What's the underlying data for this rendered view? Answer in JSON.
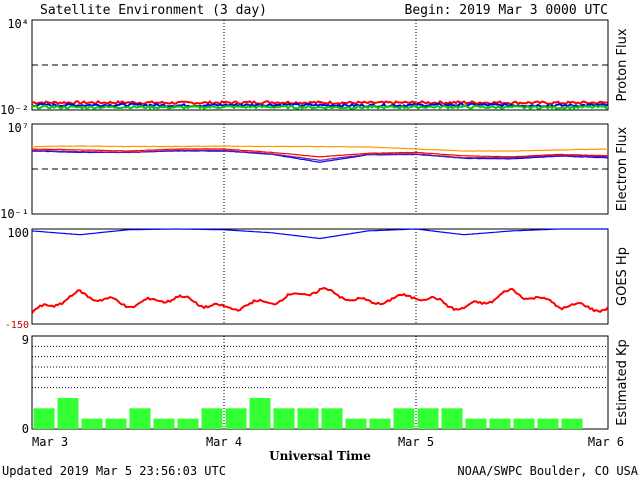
{
  "header": {
    "title": "Satellite Environment (3 day)",
    "begin": "Begin:  2019 Mar 3 0000 UTC"
  },
  "footer": {
    "updated": "Updated 2019 Mar  5 23:56:03 UTC",
    "credit": "NOAA/SWPC Boulder, CO USA",
    "xlabel": "Universal Time"
  },
  "chart_data": [
    {
      "type": "line",
      "panel": "proton",
      "ylabel": "Proton Flux",
      "yscale": "log",
      "y_tick_labels": [
        "10⁴",
        "10⁻²"
      ],
      "ylim": [
        0.01,
        10000
      ],
      "threshold": 10,
      "series": [
        {
          "color": "#ff0000",
          "values": [
            0.032,
            0.031,
            0.032,
            0.03,
            0.031,
            0.033,
            0.031,
            0.03,
            0.031,
            0.032,
            0.031,
            0.03,
            0.031
          ]
        },
        {
          "color": "#0000ff",
          "values": [
            0.022,
            0.021,
            0.022,
            0.02,
            0.021,
            0.022,
            0.021,
            0.02,
            0.021,
            0.022,
            0.021,
            0.02,
            0.021
          ]
        },
        {
          "color": "#00cc00",
          "values": [
            0.016,
            0.015,
            0.016,
            0.015,
            0.016,
            0.016,
            0.015,
            0.015,
            0.016,
            0.016,
            0.015,
            0.015,
            0.016
          ]
        }
      ]
    },
    {
      "type": "line",
      "panel": "electron",
      "ylabel": "Electron Flux",
      "yscale": "log",
      "y_tick_labels": [
        "10⁷",
        "10⁻¹"
      ],
      "ylim": [
        0.1,
        10000000
      ],
      "threshold": 1000,
      "series": [
        {
          "color": "#ff9900",
          "values": [
            100000,
            110000,
            100000,
            100000,
            110000,
            100000,
            100000,
            90000,
            60000,
            40000,
            40000,
            50000,
            60000
          ]
        },
        {
          "color": "#ff0000",
          "values": [
            60000,
            50000,
            40000,
            60000,
            60000,
            30000,
            12000,
            25000,
            30000,
            15000,
            12000,
            20000,
            15000
          ]
        },
        {
          "color": "#0000ff",
          "values": [
            40000,
            30000,
            30000,
            40000,
            40000,
            20000,
            4000,
            18000,
            20000,
            9000,
            8000,
            14000,
            10000
          ]
        },
        {
          "color": "#7a1a8a",
          "values": [
            45000,
            35000,
            30000,
            45000,
            45000,
            22000,
            6000,
            20000,
            22000,
            10000,
            10000,
            16000,
            12000
          ]
        }
      ]
    },
    {
      "type": "line",
      "panel": "goes_hp",
      "ylabel": "GOES Hp",
      "ylim": [
        -150,
        100
      ],
      "y_tick_labels": [
        "100",
        "-150"
      ],
      "series": [
        {
          "color": "#0000ff",
          "values": [
            95,
            85,
            98,
            100,
            98,
            90,
            75,
            95,
            100,
            85,
            95,
            100,
            100
          ]
        },
        {
          "color": "#ff0000",
          "values": [
            -120,
            -70,
            -100,
            -80,
            -110,
            -90,
            -60,
            -95,
            -75,
            -110,
            -65,
            -100,
            -110
          ]
        }
      ]
    },
    {
      "type": "bar",
      "panel": "kp",
      "ylabel": "Estimated Kp",
      "ylim": [
        0,
        9
      ],
      "y_tick_labels": [
        "9",
        "0"
      ],
      "color": "#33ff33",
      "values": [
        2,
        3,
        1,
        1,
        2,
        1,
        1,
        2,
        2,
        3,
        2,
        2,
        2,
        1,
        1,
        2,
        2,
        2,
        1,
        1,
        1,
        1,
        1
      ]
    }
  ],
  "x_tick_labels": [
    "Mar 3",
    "Mar 4",
    "Mar 5",
    "Mar 6"
  ]
}
